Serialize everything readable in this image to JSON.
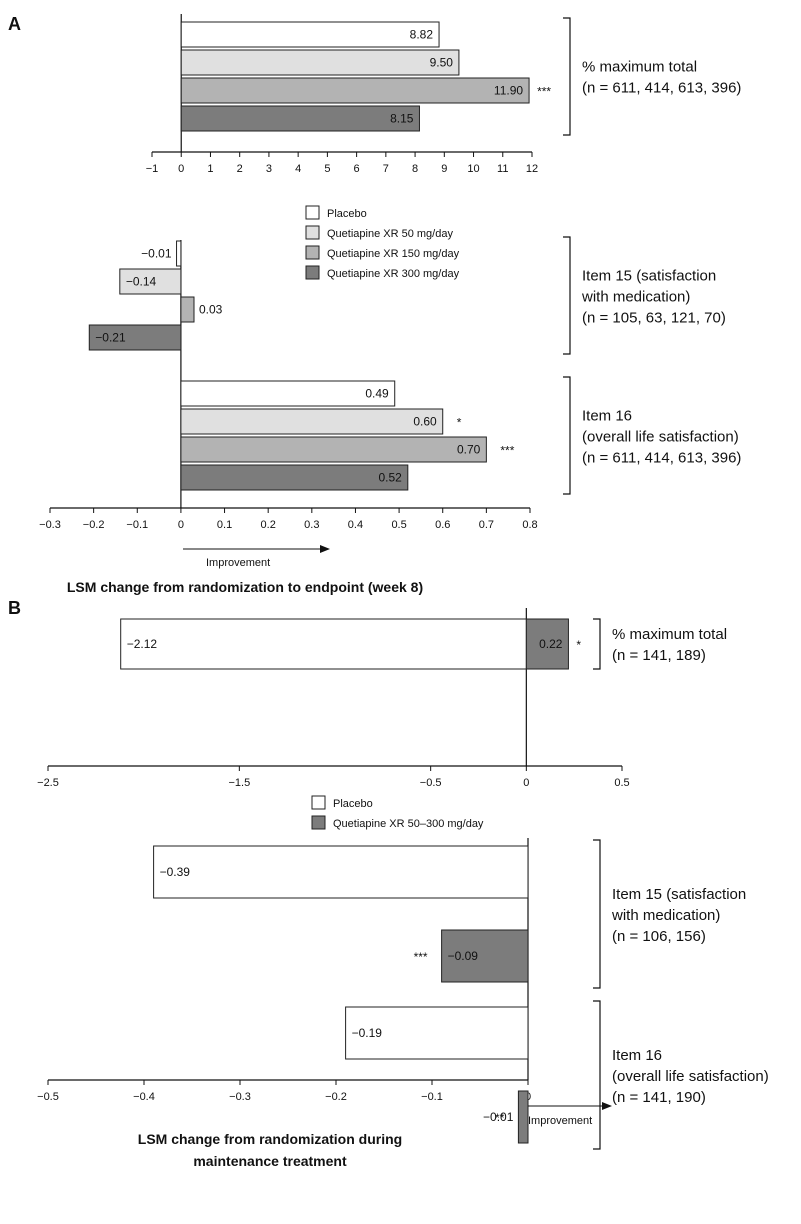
{
  "chart_data": [
    {
      "panel": "A",
      "type": "bar",
      "orientation": "horizontal",
      "xlabel": "LSM change from randomization to endpoint (week 8)",
      "improvement_label": "Improvement",
      "legend": [
        {
          "name": "Placebo",
          "color": "#ffffff"
        },
        {
          "name": "Quetiapine XR 50 mg/day",
          "color": "#e0e0e0"
        },
        {
          "name": "Quetiapine XR 150 mg/day",
          "color": "#b3b3b3"
        },
        {
          "name": "Quetiapine XR 300 mg/day",
          "color": "#7c7c7c"
        }
      ],
      "legend_placement": "between upper and lower axes",
      "subplots": [
        {
          "xlim": [
            -1,
            12
          ],
          "ticks": [
            "−1",
            "0",
            "1",
            "2",
            "3",
            "4",
            "5",
            "6",
            "7",
            "8",
            "9",
            "10",
            "11",
            "12"
          ],
          "groups": [
            {
              "label_lines": [
                "% maximum total",
                "(n = 611, 414, 613, 396)"
              ],
              "values": [
                8.82,
                9.5,
                11.9,
                8.15
              ],
              "value_labels": [
                "8.82",
                "9.50",
                "11.90",
                "8.15"
              ],
              "significance": [
                "",
                "",
                "***",
                ""
              ]
            }
          ]
        },
        {
          "xlim": [
            -0.3,
            0.8
          ],
          "ticks": [
            "−0.3",
            "−0.2",
            "−0.1",
            "0",
            "0.1",
            "0.2",
            "0.3",
            "0.4",
            "0.5",
            "0.6",
            "0.7",
            "0.8"
          ],
          "groups": [
            {
              "label_lines": [
                "Item 15 (satisfaction",
                "with medication)",
                "(n = 105, 63, 121, 70)"
              ],
              "values": [
                -0.01,
                -0.14,
                0.03,
                -0.21
              ],
              "value_labels": [
                "−0.01",
                "−0.14",
                "0.03",
                "−0.21"
              ],
              "significance": [
                "",
                "",
                "",
                ""
              ]
            },
            {
              "label_lines": [
                "Item 16",
                "(overall life satisfaction)",
                "(n = 611, 414, 613, 396)"
              ],
              "values": [
                0.49,
                0.6,
                0.7,
                0.52
              ],
              "value_labels": [
                "0.49",
                "0.60",
                "0.70",
                "0.52"
              ],
              "significance": [
                "",
                "*",
                "***",
                ""
              ]
            }
          ]
        }
      ]
    },
    {
      "panel": "B",
      "type": "bar",
      "orientation": "horizontal",
      "xlabel_lines": [
        "LSM change from randomization during",
        "maintenance treatment"
      ],
      "improvement_label": "Improvement",
      "legend": [
        {
          "name": "Placebo",
          "color": "#ffffff"
        },
        {
          "name": "Quetiapine XR 50–300 mg/day",
          "color": "#7c7c7c"
        }
      ],
      "legend_placement": "between upper and lower axes",
      "subplots": [
        {
          "xlim": [
            -2.5,
            0.5
          ],
          "ticks": [
            "−2.5",
            "−1.5",
            "−0.5",
            "0",
            "0.5"
          ],
          "groups": [
            {
              "label_lines": [
                "% maximum total",
                "(n = 141, 189)"
              ],
              "values": [
                -2.12,
                0.22
              ],
              "value_labels": [
                "−2.12",
                "0.22"
              ],
              "significance": [
                "",
                "*"
              ]
            }
          ]
        },
        {
          "xlim": [
            -0.5,
            0
          ],
          "ticks": [
            "−0.5",
            "−0.4",
            "−0.3",
            "−0.2",
            "−0.1",
            "0"
          ],
          "groups": [
            {
              "label_lines": [
                "Item 15 (satisfaction",
                "with medication)",
                "(n = 106, 156)"
              ],
              "values": [
                -0.39,
                -0.09
              ],
              "value_labels": [
                "−0.39",
                "−0.09"
              ],
              "significance": [
                "",
                "***"
              ]
            },
            {
              "label_lines": [
                "Item 16",
                "(overall life satisfaction)",
                "(n = 141, 190)"
              ],
              "values": [
                -0.19,
                -0.01
              ],
              "value_labels": [
                "−0.19",
                "−0.01"
              ],
              "significance": [
                "",
                "**"
              ]
            }
          ]
        }
      ]
    }
  ],
  "panel_labels": [
    "A",
    "B"
  ]
}
